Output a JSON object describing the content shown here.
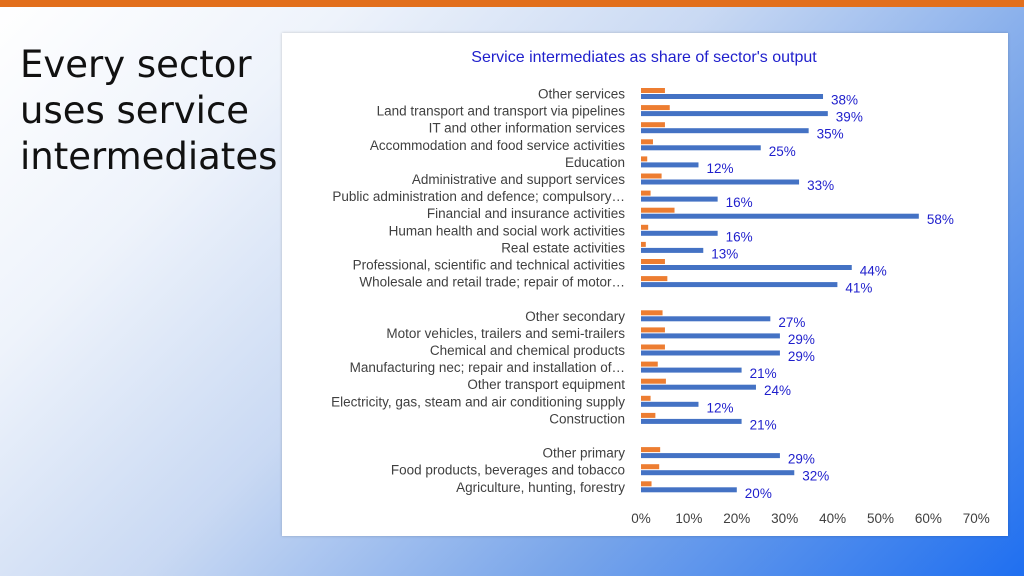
{
  "slide": {
    "title": "Every sector uses service intermediates"
  },
  "colors": {
    "accent_bar": "#e26f1c",
    "main_series": "#4472c4",
    "secondary_series": "#ed7d31",
    "label_color": "#1f1fcc"
  },
  "chart_data": {
    "type": "bar",
    "orientation": "horizontal",
    "title": "Service intermediates as share of sector's output",
    "xlabel": "",
    "ylabel": "",
    "xlim": [
      0,
      70
    ],
    "xticks": [
      "0%",
      "10%",
      "20%",
      "30%",
      "40%",
      "50%",
      "60%",
      "70%"
    ],
    "legend": "none",
    "grid": false,
    "groups": [
      {
        "categories": [
          "Other services",
          "Land transport and transport via pipelines",
          "IT and other information services",
          "Accommodation and food service activities",
          "Education",
          "Administrative and support services",
          "Public administration and defence; compulsory…",
          "Financial and insurance activities",
          "Human health and social work activities",
          "Real estate activities",
          "Professional, scientific and technical activities",
          "Wholesale and retail trade; repair of motor…"
        ],
        "values": [
          38,
          39,
          35,
          25,
          12,
          33,
          16,
          58,
          16,
          13,
          44,
          41
        ],
        "labels": [
          "38%",
          "39%",
          "35%",
          "25%",
          "12%",
          "33%",
          "16%",
          "58%",
          "16%",
          "13%",
          "44%",
          "41%"
        ],
        "secondary": [
          5,
          6,
          5,
          2.5,
          1.3,
          4.3,
          2,
          7,
          1.5,
          1,
          5,
          5.5
        ]
      },
      {
        "categories": [
          "Other secondary",
          "Motor vehicles, trailers and semi-trailers",
          "Chemical and chemical products",
          "Manufacturing nec; repair and installation of…",
          "Other transport equipment",
          "Electricity, gas, steam and air conditioning supply",
          "Construction"
        ],
        "values": [
          27,
          29,
          29,
          21,
          24,
          12,
          21
        ],
        "labels": [
          "27%",
          "29%",
          "29%",
          "21%",
          "24%",
          "12%",
          "21%"
        ],
        "secondary": [
          4.5,
          5,
          5,
          3.5,
          5.2,
          2,
          3
        ]
      },
      {
        "categories": [
          "Other primary",
          "Food products, beverages and tobacco",
          "Agriculture, hunting, forestry"
        ],
        "values": [
          29,
          32,
          20
        ],
        "labels": [
          "29%",
          "32%",
          "20%"
        ],
        "secondary": [
          4,
          3.8,
          2.2
        ]
      }
    ]
  }
}
